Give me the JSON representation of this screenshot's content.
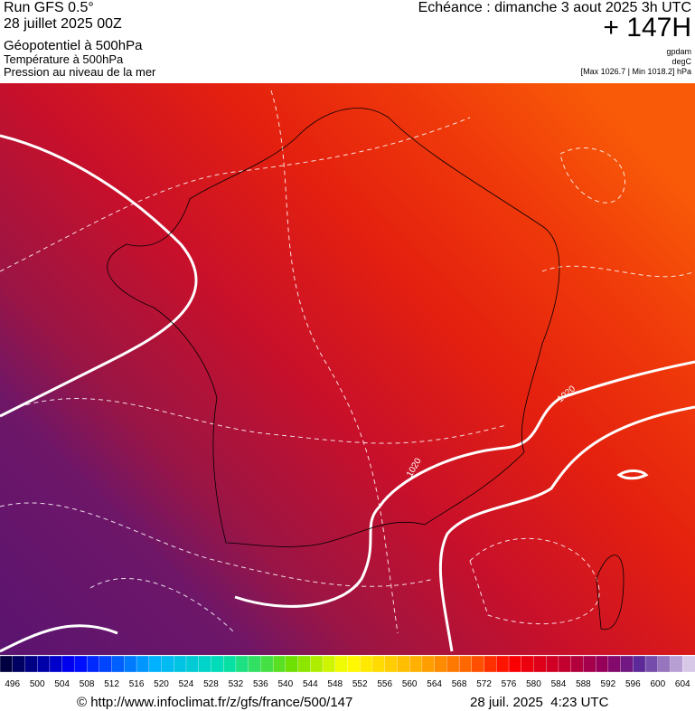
{
  "header": {
    "run": "Run GFS 0.5°",
    "date": "28 juillet 2025 00Z",
    "layers": [
      "Géopotentiel à 500hPa",
      "Température à 500hPa",
      "Pression au niveau de la mer"
    ],
    "echeance": "Echéance : dimanche 3 aout 2025 3h UTC",
    "offset": "+ 147H",
    "units": [
      "gpdam",
      "degC"
    ],
    "extremes": "[Max 1026.7 | Min 1018.2] hPa"
  },
  "map": {
    "contour_labels": [
      "1020",
      "1020"
    ]
  },
  "colorbar": {
    "labels": [
      496,
      500,
      504,
      508,
      512,
      516,
      520,
      524,
      528,
      532,
      536,
      540,
      544,
      548,
      552,
      556,
      560,
      564,
      568,
      572,
      576,
      580,
      584,
      588,
      592,
      596,
      600,
      604
    ]
  },
  "footer": {
    "url": "© http://www.infoclimat.fr/z/gfs/france/500/147",
    "timestamp": "28 juil. 2025  4:23 UTC"
  }
}
